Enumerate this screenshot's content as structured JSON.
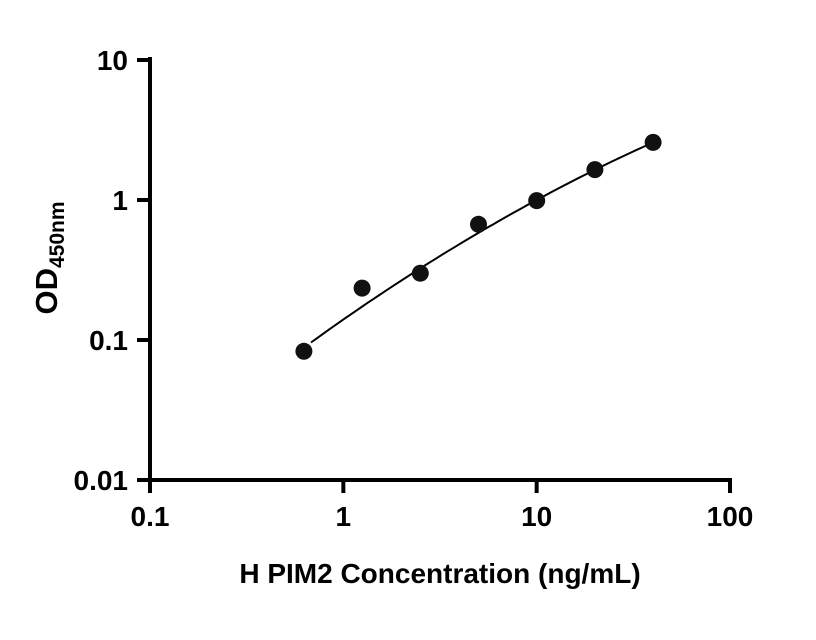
{
  "chart_data": {
    "type": "scatter",
    "title": "",
    "xlabel": "H PIM2 Concentration (ng/mL)",
    "ylabel_main": "OD",
    "ylabel_sub": "450nm",
    "x_scale": "log",
    "y_scale": "log",
    "xlim": [
      0.1,
      100
    ],
    "ylim": [
      0.01,
      10
    ],
    "x_ticks": [
      0.1,
      1,
      10,
      100
    ],
    "x_tick_labels": [
      "0.1",
      "1",
      "10",
      "100"
    ],
    "y_ticks": [
      0.01,
      0.1,
      1,
      10
    ],
    "y_tick_labels": [
      "0.01",
      "0.1",
      "1",
      "10"
    ],
    "grid": false,
    "legend": false,
    "point_color": "#111111",
    "axis_color": "#000000",
    "points": [
      {
        "x": 0.625,
        "y": 0.083
      },
      {
        "x": 1.25,
        "y": 0.235
      },
      {
        "x": 2.5,
        "y": 0.3
      },
      {
        "x": 5,
        "y": 0.67
      },
      {
        "x": 10,
        "y": 0.99
      },
      {
        "x": 20,
        "y": 1.65
      },
      {
        "x": 40,
        "y": 2.58
      }
    ],
    "trendline": {
      "model": "quadratic-loglog",
      "coefficients": {
        "a": -0.8537,
        "b": 0.9602,
        "c": -0.1065
      },
      "x_start": 0.68,
      "x_end": 40
    }
  }
}
